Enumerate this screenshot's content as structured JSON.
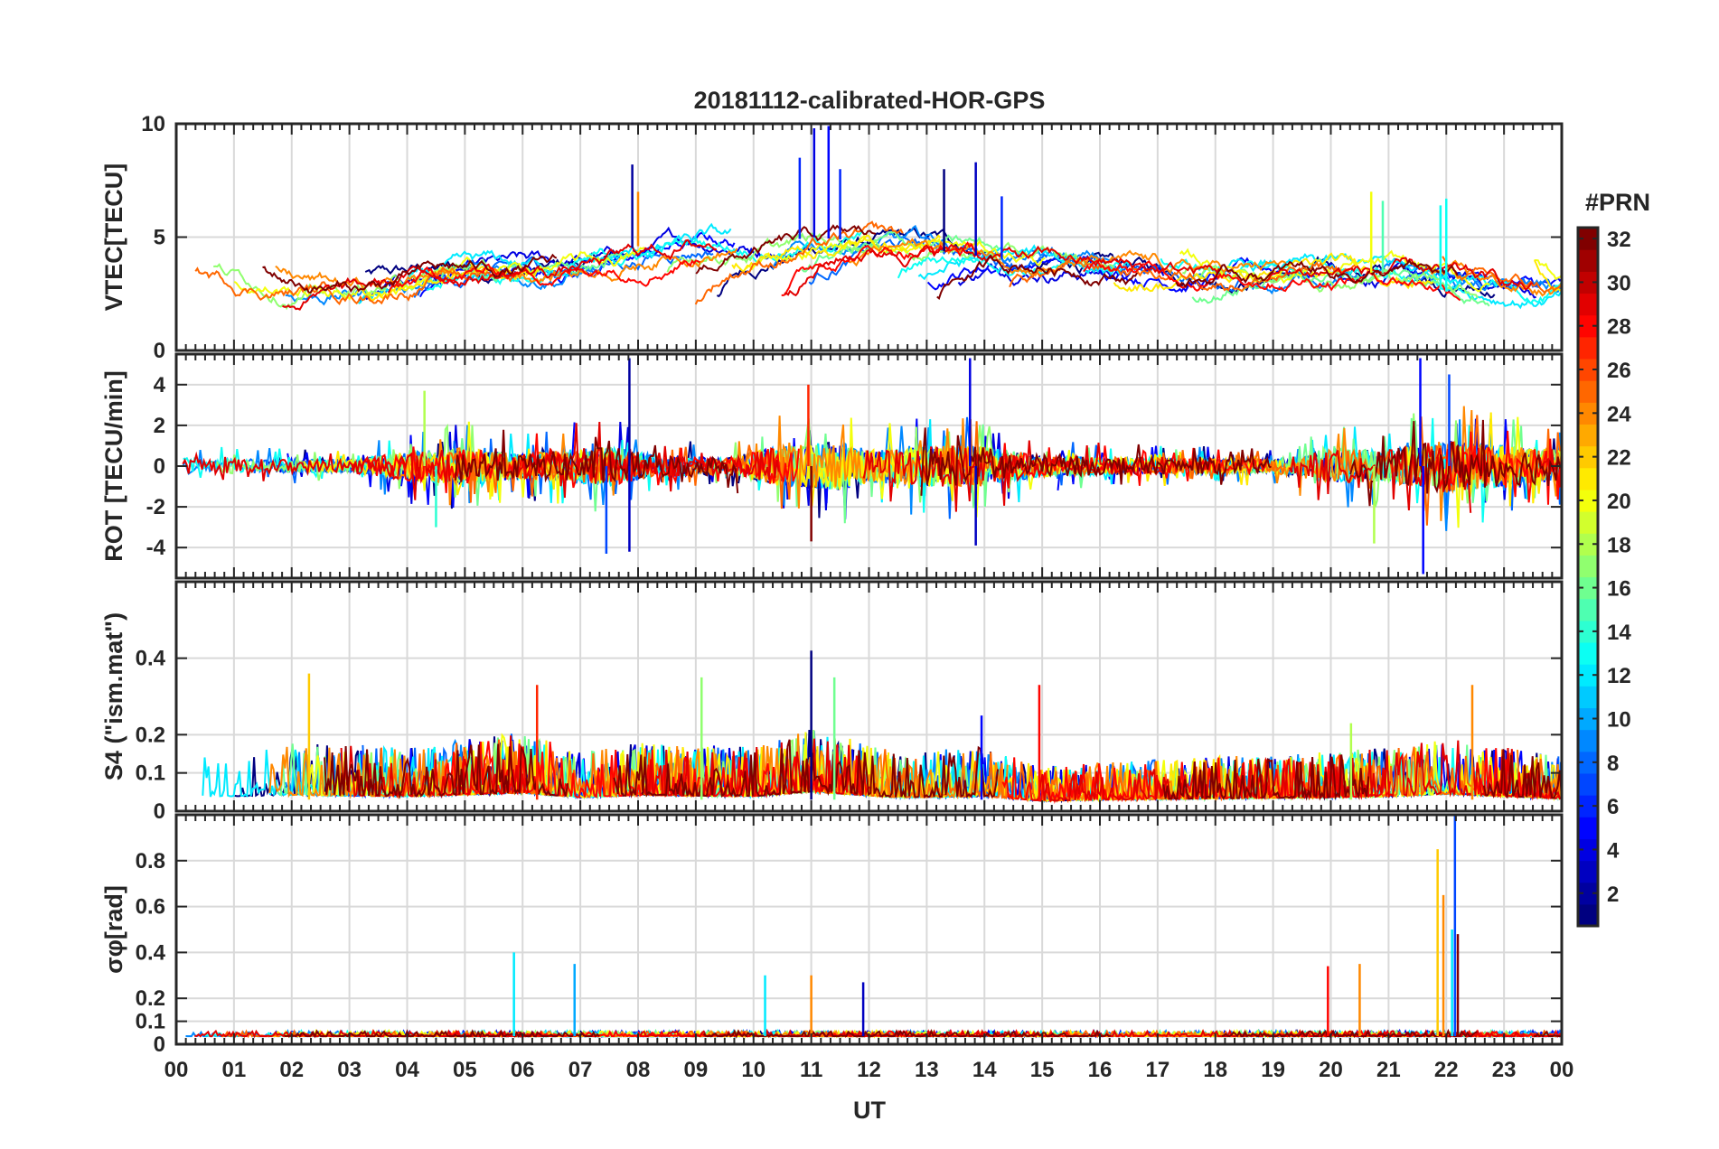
{
  "chart_data": {
    "type": "line",
    "title": "20181112-calibrated-HOR-GPS",
    "xlabel": "UT",
    "x_tick_labels": [
      "00",
      "01",
      "02",
      "03",
      "04",
      "05",
      "06",
      "07",
      "08",
      "09",
      "10",
      "11",
      "12",
      "13",
      "14",
      "15",
      "16",
      "17",
      "18",
      "19",
      "20",
      "21",
      "22",
      "23",
      "00"
    ],
    "xlim": [
      0,
      24
    ],
    "colorbar": {
      "label": "#PRN",
      "range": [
        1,
        32
      ],
      "ticks": [
        2,
        4,
        6,
        8,
        10,
        12,
        14,
        16,
        18,
        20,
        22,
        24,
        26,
        28,
        30,
        32
      ],
      "colormap": "jet"
    },
    "panels": [
      {
        "ylabel": "VTEC[TECU]",
        "ylim": [
          0,
          10
        ],
        "yticks": [
          0,
          5,
          10
        ],
        "ytick_labels": [
          "0",
          "5",
          "10"
        ],
        "base": 3.0,
        "amp": 1.2,
        "mode": "smooth",
        "envelope": [
          [
            0,
            2.6
          ],
          [
            3,
            2.6
          ],
          [
            4,
            3.6
          ],
          [
            6,
            3.5
          ],
          [
            7.5,
            4.2
          ],
          [
            8.5,
            5.0
          ],
          [
            10,
            4.6
          ],
          [
            11,
            5.0
          ],
          [
            12,
            4.8
          ],
          [
            13.5,
            4.3
          ],
          [
            15,
            3.8
          ],
          [
            17,
            3.3
          ],
          [
            19,
            3.6
          ],
          [
            21,
            3.4
          ],
          [
            22,
            2.6
          ],
          [
            24,
            2.3
          ]
        ],
        "spikes": [
          [
            7.9,
            8.2,
            2
          ],
          [
            8.0,
            7.0,
            24
          ],
          [
            10.8,
            8.5,
            6
          ],
          [
            11.05,
            9.8,
            4
          ],
          [
            11.3,
            9.9,
            5
          ],
          [
            11.5,
            8.0,
            6
          ],
          [
            13.3,
            8.0,
            1
          ],
          [
            13.85,
            8.3,
            3
          ],
          [
            14.3,
            6.8,
            6
          ],
          [
            20.7,
            7.0,
            20
          ],
          [
            20.9,
            6.6,
            15
          ],
          [
            21.9,
            6.4,
            13
          ],
          [
            22.0,
            6.7,
            13
          ]
        ]
      },
      {
        "ylabel": "ROT [TECU/min]",
        "ylim": [
          -5.5,
          5.5
        ],
        "yticks": [
          -4,
          -2,
          0,
          2,
          4
        ],
        "ytick_labels": [
          "-4",
          "-2",
          "0",
          "2",
          "4"
        ],
        "base": 0,
        "amp": 0.35,
        "mode": "noise",
        "envelope": [
          [
            0,
            0.4
          ],
          [
            3,
            0.3
          ],
          [
            4,
            0.7
          ],
          [
            5,
            0.9
          ],
          [
            6,
            0.6
          ],
          [
            7.5,
            1.0
          ],
          [
            8.2,
            0.6
          ],
          [
            9.5,
            0.4
          ],
          [
            10.5,
            1.0
          ],
          [
            11.5,
            1.2
          ],
          [
            12,
            0.8
          ],
          [
            13,
            1.0
          ],
          [
            14,
            1.0
          ],
          [
            15,
            0.5
          ],
          [
            17,
            0.4
          ],
          [
            19,
            0.35
          ],
          [
            20,
            0.8
          ],
          [
            21,
            0.8
          ],
          [
            22,
            1.3
          ],
          [
            23,
            1.0
          ],
          [
            24,
            0.8
          ]
        ],
        "spikes": [
          [
            7.45,
            -4.3,
            7
          ],
          [
            7.85,
            5.3,
            2
          ],
          [
            7.85,
            -4.2,
            3
          ],
          [
            10.95,
            4.0,
            27
          ],
          [
            11.0,
            -3.7,
            32
          ],
          [
            13.75,
            5.3,
            4
          ],
          [
            13.85,
            -3.9,
            3
          ],
          [
            20.75,
            -3.8,
            18
          ],
          [
            21.55,
            5.3,
            5
          ],
          [
            21.6,
            -5.3,
            5
          ],
          [
            22.05,
            4.5,
            7
          ],
          [
            4.3,
            3.7,
            18
          ],
          [
            4.5,
            -3.0,
            14
          ]
        ]
      },
      {
        "ylabel": "S4 (\"ism.mat\")",
        "ylim": [
          0,
          0.6
        ],
        "yticks": [
          0,
          0.1,
          0.2,
          0.4
        ],
        "ytick_labels": [
          "0",
          "0.1",
          "0.2",
          "0.4"
        ],
        "base": 0.03,
        "amp": 0.045,
        "mode": "positive",
        "envelope": [
          [
            0,
            1.2
          ],
          [
            2,
            1.4
          ],
          [
            4,
            1.3
          ],
          [
            6,
            1.6
          ],
          [
            7,
            1.2
          ],
          [
            8,
            1.4
          ],
          [
            10,
            1.3
          ],
          [
            11,
            1.7
          ],
          [
            12.5,
            1.2
          ],
          [
            14,
            1.3
          ],
          [
            15,
            0.9
          ],
          [
            16,
            1.0
          ],
          [
            18,
            1.1
          ],
          [
            20,
            1.2
          ],
          [
            21,
            1.3
          ],
          [
            22,
            1.5
          ],
          [
            24,
            1.1
          ]
        ],
        "spikes": [
          [
            2.3,
            0.36,
            22
          ],
          [
            6.25,
            0.33,
            27
          ],
          [
            9.1,
            0.35,
            17
          ],
          [
            11.0,
            0.42,
            1
          ],
          [
            11.4,
            0.35,
            16
          ],
          [
            14.95,
            0.33,
            28
          ],
          [
            22.45,
            0.33,
            24
          ],
          [
            20.35,
            0.23,
            18
          ],
          [
            13.95,
            0.25,
            5
          ]
        ]
      },
      {
        "ylabel": "σφ[rad]",
        "ylim": [
          0,
          1
        ],
        "yticks": [
          0,
          0.1,
          0.2,
          0.4,
          0.6,
          0.8
        ],
        "ytick_labels": [
          "0",
          "0.1",
          "0.2",
          "0.4",
          "0.6",
          "0.8"
        ],
        "base": 0.035,
        "amp": 0.01,
        "mode": "positive",
        "envelope": [
          [
            0,
            1
          ],
          [
            24,
            1
          ]
        ],
        "spikes": [
          [
            5.85,
            0.4,
            12
          ],
          [
            6.9,
            0.35,
            10
          ],
          [
            10.2,
            0.3,
            12
          ],
          [
            11.0,
            0.3,
            24
          ],
          [
            11.9,
            0.27,
            3
          ],
          [
            19.95,
            0.34,
            28
          ],
          [
            20.5,
            0.35,
            24
          ],
          [
            21.85,
            0.85,
            22
          ],
          [
            21.95,
            0.65,
            24
          ],
          [
            22.15,
            1.0,
            7
          ],
          [
            22.1,
            0.5,
            12
          ],
          [
            22.2,
            0.48,
            32
          ]
        ]
      }
    ]
  }
}
